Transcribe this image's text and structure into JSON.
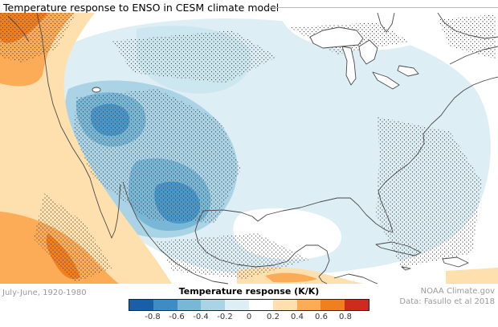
{
  "title": "Temperature response to ENSO in CESM climate model",
  "footer": {
    "period_label": "July-June, 1920-1980",
    "source_line1": "NOAA Climate.gov",
    "source_line2": "Data: Fasullo et al 2018"
  },
  "colorbar": {
    "label": "Temperature response (K/K)",
    "tick_labels": [
      "-0.8",
      "-0.6",
      "-0.4",
      "-0.2",
      "0",
      "0.2",
      "0.4",
      "0.6",
      "0.8"
    ],
    "segment_colors": [
      "#1a5fa6",
      "#3d8dc3",
      "#79b7d7",
      "#aad3e6",
      "#ddeef5",
      "#ffffff",
      "#fee0ae",
      "#fcab56",
      "#f07f1f",
      "#ce2b1d"
    ]
  },
  "chart_data": {
    "type": "heatmap",
    "title": "Temperature response to ENSO in CESM climate model",
    "colorbar_label": "Temperature response (K/K)",
    "colorbar_ticks": [
      -0.8,
      -0.6,
      -0.4,
      -0.2,
      0,
      0.2,
      0.4,
      0.6,
      0.8
    ],
    "units": "K/K",
    "regions": [
      {
        "area": "Northeast Pacific / Pacific Northwest coast",
        "value_range": "+0.2 to +0.8"
      },
      {
        "area": "Coastal band along California and Baja California",
        "value_range": "+0.2 to +0.6"
      },
      {
        "area": "Interior west / northern Rockies core",
        "value_range": "-0.4 to -0.6"
      },
      {
        "area": "Southern Plains / Texas-New Mexico core",
        "value_range": "-0.4 to -0.6"
      },
      {
        "area": "Most of continental US, Canada and western Atlantic",
        "value_range": "-0.2 to 0"
      },
      {
        "area": "Gulf of Mexico and far northeast corner",
        "value_range": "near 0"
      },
      {
        "area": "Southern Mexico / Central America coast",
        "value_range": "+0.2 to +0.4"
      }
    ],
    "overlay": "stippled (dotted) regions across the map",
    "legend_position": "bottom center"
  }
}
